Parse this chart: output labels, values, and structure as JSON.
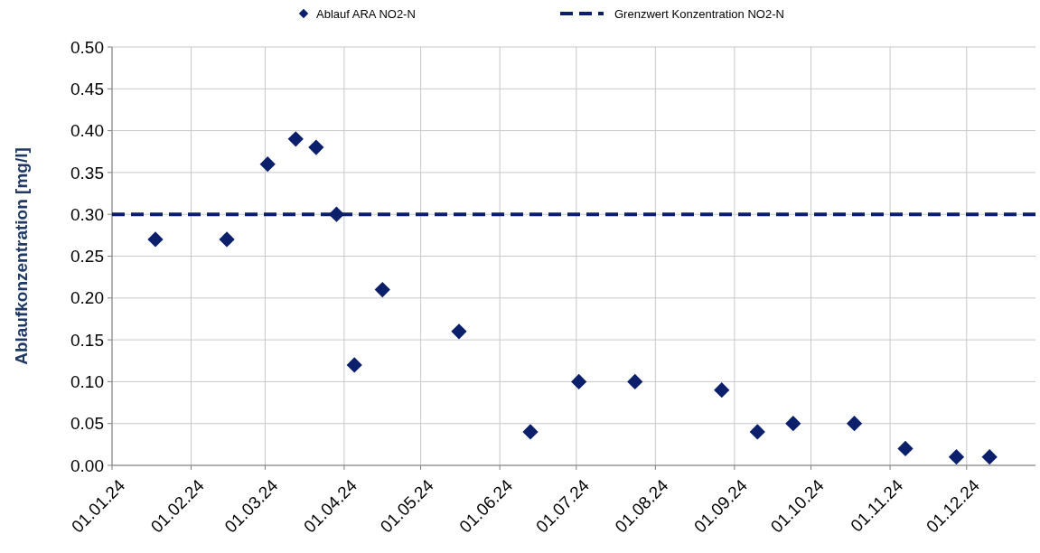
{
  "chart_data": {
    "type": "scatter",
    "ylabel": "Ablaufkonzentration  [mg/l]",
    "series": [
      {
        "name": "Ablauf ARA NO2-N",
        "marker": "diamond",
        "color": "#0b1f6b",
        "x": [
          "2024-01-18",
          "2024-02-15",
          "2024-03-02",
          "2024-03-13",
          "2024-03-21",
          "2024-03-29",
          "2024-04-05",
          "2024-04-16",
          "2024-05-16",
          "2024-06-13",
          "2024-07-02",
          "2024-07-24",
          "2024-08-27",
          "2024-09-10",
          "2024-09-24",
          "2024-10-18",
          "2024-11-07",
          "2024-11-27",
          "2024-12-10"
        ],
        "values": [
          0.27,
          0.27,
          0.36,
          0.39,
          0.38,
          0.3,
          0.12,
          0.21,
          0.16,
          0.04,
          0.1,
          0.1,
          0.09,
          0.04,
          0.05,
          0.05,
          0.02,
          0.01,
          0.01
        ]
      },
      {
        "name": "Grenzwert Konzentration NO2-N",
        "type": "line",
        "line_style": "dashed",
        "color": "#0b1f6b",
        "x": [
          "2024-01-01",
          "2024-12-28"
        ],
        "values": [
          0.3,
          0.3
        ]
      }
    ],
    "xlim": [
      "2024-01-01",
      "2024-12-28"
    ],
    "xticks": [
      {
        "value": "2024-01-01",
        "label": "01.01.24"
      },
      {
        "value": "2024-02-01",
        "label": "01.02.24"
      },
      {
        "value": "2024-03-01",
        "label": "01.03.24"
      },
      {
        "value": "2024-04-01",
        "label": "01.04.24"
      },
      {
        "value": "2024-05-01",
        "label": "01.05.24"
      },
      {
        "value": "2024-06-01",
        "label": "01.06.24"
      },
      {
        "value": "2024-07-01",
        "label": "01.07.24"
      },
      {
        "value": "2024-08-01",
        "label": "01.08.24"
      },
      {
        "value": "2024-09-01",
        "label": "01.09.24"
      },
      {
        "value": "2024-10-01",
        "label": "01.10.24"
      },
      {
        "value": "2024-11-01",
        "label": "01.11.24"
      },
      {
        "value": "2024-12-01",
        "label": "01.12.24"
      }
    ],
    "ylim": [
      0,
      0.5
    ],
    "yticks": [
      {
        "value": 0,
        "label": "0.00"
      },
      {
        "value": 0.05,
        "label": "0.05"
      },
      {
        "value": 0.1,
        "label": "0.10"
      },
      {
        "value": 0.15,
        "label": "0.15"
      },
      {
        "value": 0.2,
        "label": "0.20"
      },
      {
        "value": 0.25,
        "label": "0.25"
      },
      {
        "value": 0.3,
        "label": "0.30"
      },
      {
        "value": 0.35,
        "label": "0.35"
      },
      {
        "value": 0.4,
        "label": "0.40"
      },
      {
        "value": 0.45,
        "label": "0.45"
      },
      {
        "value": 0.5,
        "label": "0.50"
      }
    ],
    "grid": true,
    "legend": "top"
  }
}
